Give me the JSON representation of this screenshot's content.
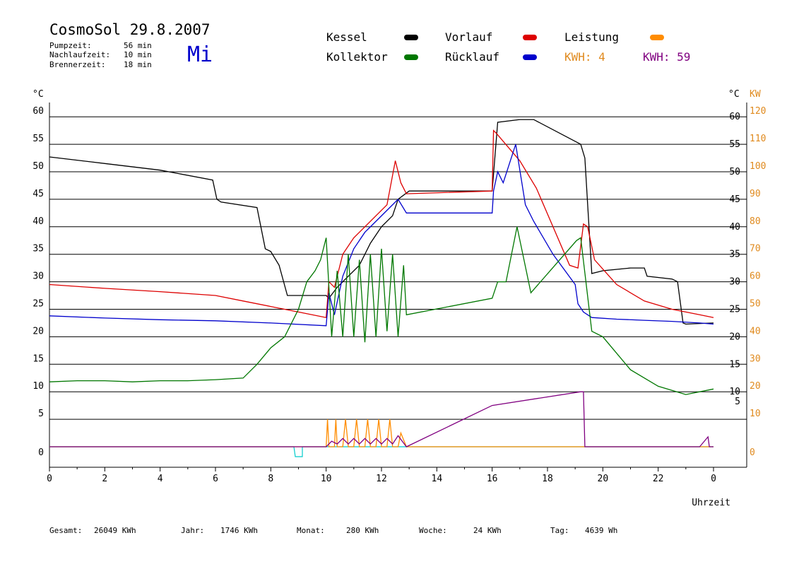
{
  "header": {
    "title": "CosmoSol 29.8.2007",
    "day_label": "Mi",
    "info": [
      {
        "label": "Pumpzeit:",
        "value": "56 min"
      },
      {
        "label": "Nachlaufzeit:",
        "value": "10 min"
      },
      {
        "label": "Brennerzeit:",
        "value": "18 min"
      }
    ]
  },
  "legend": {
    "kessel": "Kessel",
    "kollektor": "Kollektor",
    "vorlauf": "Vorlauf",
    "ruecklauf": "Rücklauf",
    "leistung": "Leistung",
    "kwh_orange": "KWH: 4",
    "kwh_purple": "KWH: 59"
  },
  "colors": {
    "kessel": "#000000",
    "kollektor": "#007700",
    "vorlauf": "#dd0000",
    "ruecklauf": "#0000cc",
    "leistung": "#ff8c00",
    "kwh_orange": "#e08a1e",
    "kwh_purple": "#800080",
    "baseline": "#00cccc"
  },
  "footer": [
    {
      "label": "Gesamt:",
      "value": "26049 KWh"
    },
    {
      "label": "Jahr:",
      "value": "1746 KWh"
    },
    {
      "label": "Monat:",
      "value": "280 KWh"
    },
    {
      "label": "Woche:",
      "value": "24 KWh"
    },
    {
      "label": "Tag:",
      "value": "4639 Wh"
    }
  ],
  "chart_data": {
    "type": "line",
    "title": "CosmoSol 29.8.2007",
    "xlabel": "Uhrzeit",
    "ylabel_left": "°C",
    "ylabel_right_temp": "°C",
    "ylabel_right_power": "KW",
    "xlim": [
      0,
      24
    ],
    "x_tick_labels": [
      "0",
      "2",
      "4",
      "6",
      "8",
      "10",
      "12",
      "14",
      "16",
      "18",
      "20",
      "22",
      "0"
    ],
    "ylim_left": [
      -3.7,
      63
    ],
    "y_ticks_left": [
      0,
      5,
      10,
      15,
      20,
      25,
      30,
      35,
      40,
      45,
      50,
      55,
      60
    ],
    "y_ticks_right_temp": [
      5,
      10,
      15,
      20,
      25,
      30,
      35,
      40,
      45,
      50,
      55,
      60
    ],
    "y_ticks_right_power": [
      0,
      10,
      20,
      30,
      40,
      50,
      60,
      70,
      80,
      90,
      100,
      110,
      120
    ],
    "grid": "horizontal",
    "series": [
      {
        "name": "Kessel",
        "x": [
          0,
          2,
          4,
          5.9,
          6.05,
          6.2,
          7.5,
          7.8,
          8,
          8.3,
          8.6,
          8.8,
          10,
          10.1,
          10.4,
          10.8,
          11.2,
          11.6,
          12,
          12.4,
          12.6,
          13,
          16,
          16.2,
          17,
          17.5,
          19.2,
          19.35,
          19.6,
          20,
          21,
          21.5,
          21.6,
          22.5,
          22.7,
          22.9,
          23,
          24
        ],
        "y": [
          52.7,
          51.5,
          50.3,
          48.5,
          45,
          44.5,
          43.5,
          36,
          35.5,
          33,
          27.5,
          27.5,
          27.5,
          27,
          29,
          31,
          33,
          37,
          40,
          42,
          45,
          46.5,
          46.5,
          59,
          59.5,
          59.5,
          55,
          52.5,
          31.5,
          32,
          32.5,
          32.5,
          31,
          30.5,
          30,
          22.5,
          22.3,
          22.5
        ]
      },
      {
        "name": "Vorlauf",
        "x": [
          0,
          2,
          4,
          6,
          7,
          8,
          9,
          10,
          10.1,
          10.3,
          10.6,
          11,
          11.4,
          11.8,
          12.2,
          12.5,
          12.7,
          12.9,
          16,
          16.05,
          16.15,
          17,
          17.6,
          18.2,
          18.8,
          19.1,
          19.3,
          19.45,
          19.7,
          20.5,
          21.5,
          22.5,
          23.5,
          24
        ],
        "y": [
          29.5,
          28.8,
          28.2,
          27.5,
          26.5,
          25.5,
          24.5,
          23.5,
          30,
          29,
          35,
          38,
          40,
          42,
          44,
          52,
          48,
          46,
          46.5,
          57.5,
          57,
          52,
          47,
          40,
          33,
          32.5,
          40.5,
          40,
          34,
          29.5,
          26.5,
          25,
          24,
          23.5
        ]
      },
      {
        "name": "Rücklauf",
        "x": [
          0,
          2,
          4,
          6,
          8,
          10,
          10.1,
          10.3,
          10.6,
          11,
          11.4,
          11.8,
          12.2,
          12.6,
          12.9,
          16,
          16.05,
          16.2,
          16.4,
          16.85,
          17.2,
          17.5,
          18.2,
          19,
          19.1,
          19.3,
          19.6,
          20.5,
          21.5,
          22.5,
          23.5,
          24
        ],
        "y": [
          23.8,
          23.4,
          23.1,
          22.9,
          22.5,
          22,
          28,
          24,
          31,
          36,
          39,
          41,
          43,
          45,
          42.5,
          42.5,
          46.5,
          50,
          48,
          55,
          44,
          41,
          35,
          29.5,
          26,
          24.5,
          23.5,
          23.2,
          23,
          22.8,
          22.5,
          22.3
        ],
        "color_key": "ruecklauf"
      },
      {
        "name": "Kollektor",
        "x": [
          0,
          1,
          2,
          3,
          4,
          5,
          6,
          7,
          7.5,
          8,
          8.5,
          9,
          9.3,
          9.6,
          9.8,
          10,
          10.2,
          10.4,
          10.6,
          10.8,
          11,
          11.2,
          11.4,
          11.6,
          11.8,
          12,
          12.2,
          12.4,
          12.6,
          12.8,
          12.9,
          16,
          16.2,
          16.5,
          16.9,
          17.4,
          19.05,
          19.2,
          19.6,
          20,
          21,
          22,
          23,
          24
        ],
        "y": [
          11.8,
          12,
          12,
          11.8,
          12,
          12,
          12.2,
          12.5,
          15,
          18,
          20,
          25,
          30,
          32,
          34,
          38,
          20,
          32,
          20,
          35,
          20,
          34,
          19,
          35,
          20,
          36,
          21,
          35,
          20,
          33,
          24,
          27,
          30,
          30,
          40,
          28,
          37.5,
          38,
          21,
          20,
          14,
          11,
          9.5,
          10.5
        ],
        "color_key": "kollektor"
      },
      {
        "name": "Leistung",
        "x": [
          0,
          10,
          10.05,
          10.1,
          10.3,
          10.35,
          10.4,
          10.6,
          10.7,
          10.8,
          11,
          11.1,
          11.2,
          11.4,
          11.5,
          11.6,
          11.8,
          11.9,
          12,
          12.2,
          12.3,
          12.4,
          12.6,
          12.7,
          12.9,
          24
        ],
        "y": [
          0,
          0,
          5,
          0,
          0,
          5,
          0,
          0,
          5,
          0,
          0,
          5,
          0,
          0,
          5,
          0,
          0,
          5,
          0,
          0,
          5,
          0,
          0,
          2.5,
          0,
          0
        ]
      },
      {
        "name": "KWH",
        "x": [
          0,
          10,
          10.2,
          10.4,
          10.6,
          10.8,
          11,
          11.2,
          11.4,
          11.6,
          11.8,
          12,
          12.2,
          12.4,
          12.6,
          12.9,
          16,
          19.2,
          19.3,
          19.35,
          23.5,
          23.8,
          23.85,
          24
        ],
        "y": [
          0,
          0,
          1,
          0.5,
          1.5,
          0.5,
          1.5,
          0.5,
          1.5,
          0.5,
          1.5,
          0.5,
          1.5,
          0.5,
          2,
          0,
          7.5,
          10,
          10,
          0,
          0,
          1.8,
          0,
          0
        ]
      }
    ]
  }
}
